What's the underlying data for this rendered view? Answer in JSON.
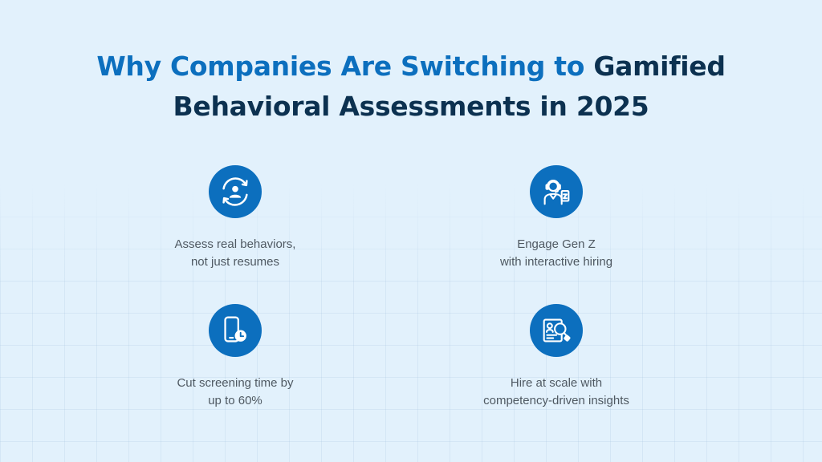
{
  "heading": {
    "highlight": "Why Companies Are Switching to",
    "rest_line1": "Gamified",
    "line2": "Behavioral Assessments in 2025"
  },
  "features": [
    {
      "icon": "behavior-cycle-icon",
      "line1": "Assess real behaviors,",
      "line2": "not just resumes"
    },
    {
      "icon": "gen-z-player-icon",
      "line1": "Engage Gen Z",
      "line2": "with interactive hiring"
    },
    {
      "icon": "phone-clock-icon",
      "line1": "Cut screening time by",
      "line2": "up to 60%"
    },
    {
      "icon": "profile-search-icon",
      "line1": "Hire at scale with",
      "line2": "competency-driven insights"
    }
  ],
  "colors": {
    "background": "#e2f1fc",
    "accent_blue": "#0c6fbe",
    "heading_dark": "#0c3150",
    "caption_gray": "#4f5962"
  }
}
